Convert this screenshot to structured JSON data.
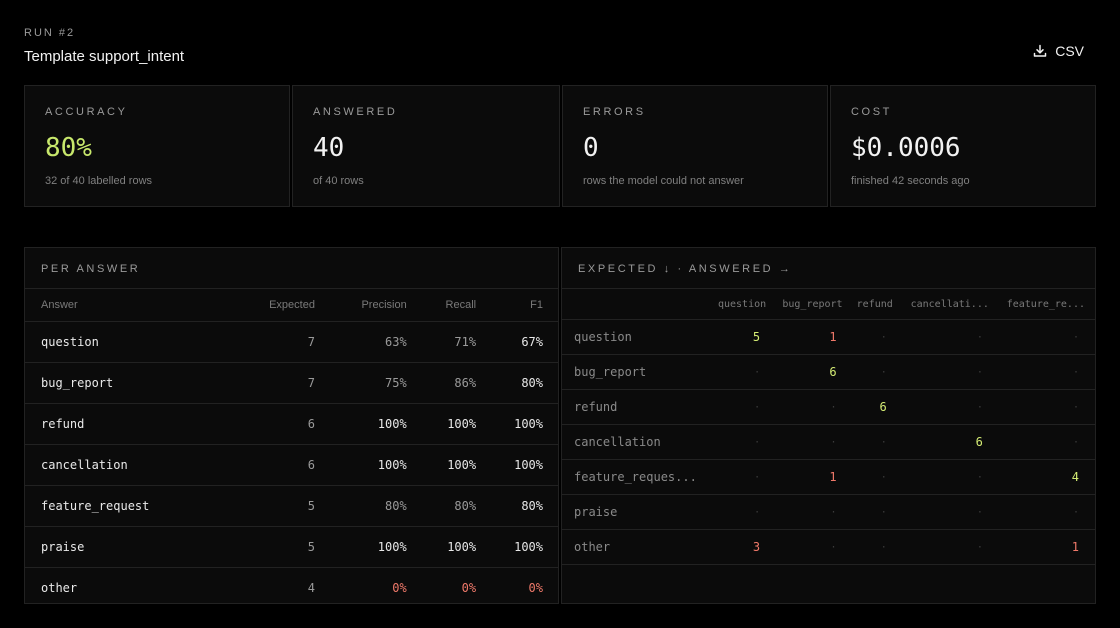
{
  "header": {
    "run_label": "RUN #2",
    "title": "Template support_intent",
    "csv_label": "CSV"
  },
  "stats": [
    {
      "label": "ACCURACY",
      "value": "80%",
      "sub": "32 of 40 labelled rows"
    },
    {
      "label": "ANSWERED",
      "value": "40",
      "sub": "of 40 rows"
    },
    {
      "label": "ERRORS",
      "value": "0",
      "sub": "rows the model could not answer"
    },
    {
      "label": "COST",
      "value": "$0.0006",
      "sub": "finished 42 seconds ago"
    }
  ],
  "per_answer": {
    "title": "PER ANSWER",
    "columns": [
      "Answer",
      "Expected",
      "Precision",
      "Recall",
      "F1"
    ],
    "rows": [
      {
        "answer": "question",
        "expected": "7",
        "precision": "63%",
        "recall": "71%",
        "f1": "67%"
      },
      {
        "answer": "bug_report",
        "expected": "7",
        "precision": "75%",
        "recall": "86%",
        "f1": "80%"
      },
      {
        "answer": "refund",
        "expected": "6",
        "precision": "100%",
        "recall": "100%",
        "f1": "100%"
      },
      {
        "answer": "cancellation",
        "expected": "6",
        "precision": "100%",
        "recall": "100%",
        "f1": "100%"
      },
      {
        "answer": "feature_request",
        "expected": "5",
        "precision": "80%",
        "recall": "80%",
        "f1": "80%"
      },
      {
        "answer": "praise",
        "expected": "5",
        "precision": "100%",
        "recall": "100%",
        "f1": "100%"
      },
      {
        "answer": "other",
        "expected": "4",
        "precision": "0%",
        "recall": "0%",
        "f1": "0%"
      }
    ]
  },
  "confusion": {
    "title": "EXPECTED ↓ · ANSWERED →",
    "columns": [
      "question",
      "bug_report",
      "refund",
      "cancellati...",
      "feature_re..."
    ],
    "rows": [
      {
        "label": "question",
        "cells": [
          "5",
          "1",
          "·",
          "·",
          "·"
        ]
      },
      {
        "label": "bug_report",
        "cells": [
          "·",
          "6",
          "·",
          "·",
          "·"
        ]
      },
      {
        "label": "refund",
        "cells": [
          "·",
          "·",
          "6",
          "·",
          "·"
        ]
      },
      {
        "label": "cancellation",
        "cells": [
          "·",
          "·",
          "·",
          "6",
          "·"
        ]
      },
      {
        "label": "feature_reques...",
        "cells": [
          "·",
          "1",
          "·",
          "·",
          "4"
        ]
      },
      {
        "label": "praise",
        "cells": [
          "·",
          "·",
          "·",
          "·",
          "·"
        ]
      },
      {
        "label": "other",
        "cells": [
          "3",
          "·",
          "·",
          "·",
          "1"
        ]
      }
    ]
  },
  "colors": {
    "accent": "#c8e86c",
    "correct": "#d4ec74",
    "error": "#f0796a"
  }
}
